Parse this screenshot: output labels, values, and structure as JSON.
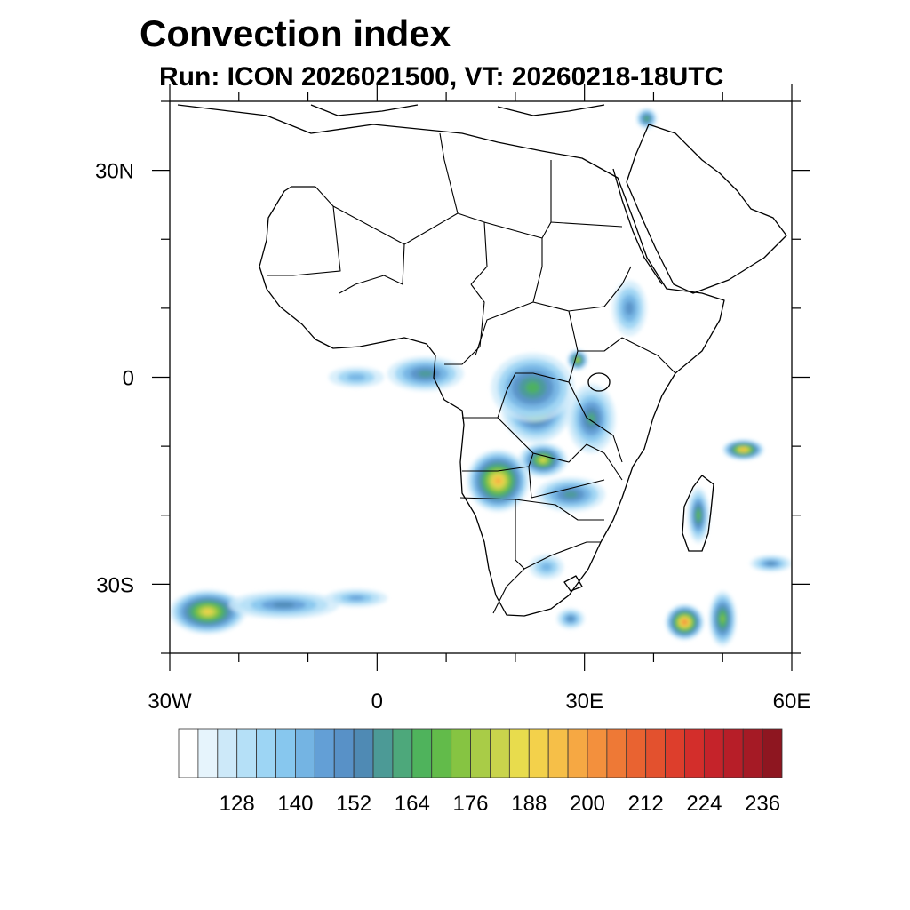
{
  "title": "Convection index",
  "subtitle": "Run: ICON 2026021500,  VT: 20260218-18UTC",
  "map": {
    "projection": "equirectangular",
    "lon_range": [
      -30,
      60
    ],
    "lat_range": [
      -40,
      40
    ],
    "lon_ticks": [
      {
        "lon": -30,
        "label": "30W"
      },
      {
        "lon": 0,
        "label": "0"
      },
      {
        "lon": 30,
        "label": "30E"
      },
      {
        "lon": 60,
        "label": "60E"
      }
    ],
    "lat_ticks": [
      {
        "lat": 30,
        "label": "30N"
      },
      {
        "lat": 0,
        "label": "0"
      },
      {
        "lat": -30,
        "label": "30S"
      }
    ],
    "minor_lon_step": 10,
    "minor_lat_step": 10,
    "coastline_color": "#000000"
  },
  "chart_data": {
    "type": "heatmap",
    "title": "Convection index",
    "subtitle": "Run: ICON 2026021500,  VT: 20260218-18UTC",
    "variable": "Convection index",
    "colorbar": {
      "levels": [
        116,
        120,
        124,
        128,
        132,
        136,
        140,
        144,
        148,
        152,
        156,
        160,
        164,
        168,
        172,
        176,
        180,
        184,
        188,
        192,
        196,
        200,
        204,
        208,
        212,
        216,
        220,
        224,
        228,
        232,
        236,
        240
      ],
      "colors": [
        "#ffffff",
        "#e6f4fc",
        "#cde9f9",
        "#b5e0f7",
        "#9dd5f4",
        "#87c7ee",
        "#74b4e3",
        "#639fd6",
        "#5891c7",
        "#4f8ab4",
        "#4c9a96",
        "#4da87b",
        "#4fb35c",
        "#62bb4a",
        "#86c442",
        "#a9cc47",
        "#c9d44c",
        "#e8dc4d",
        "#f3d14b",
        "#f6bf48",
        "#f6a843",
        "#f3903d",
        "#ee7936",
        "#e96331",
        "#e3512e",
        "#dd3e2c",
        "#d32e2b",
        "#c5232a",
        "#b71e28",
        "#a51a25",
        "#8e1620"
      ],
      "labels": [
        128,
        140,
        152,
        164,
        176,
        188,
        200,
        212,
        224,
        236
      ]
    },
    "convection_cells": [
      {
        "lon": 17.5,
        "lat": -15.0,
        "rx": 4.5,
        "ry": 4.5,
        "peak": 196
      },
      {
        "lon": 24.0,
        "lat": -12.0,
        "rx": 3.5,
        "ry": 2.5,
        "peak": 184
      },
      {
        "lon": 23.0,
        "lat": -4.5,
        "rx": 5.0,
        "ry": 5.0,
        "peak": 176
      },
      {
        "lon": 22.5,
        "lat": -1.5,
        "rx": 6.0,
        "ry": 5.0,
        "peak": 164
      },
      {
        "lon": 31.0,
        "lat": -6.0,
        "rx": 3.5,
        "ry": 5.0,
        "peak": 160
      },
      {
        "lon": 28.0,
        "lat": -17.0,
        "rx": 5.0,
        "ry": 2.5,
        "peak": 156
      },
      {
        "lon": 29.0,
        "lat": 2.5,
        "rx": 1.5,
        "ry": 1.5,
        "peak": 180
      },
      {
        "lon": 36.5,
        "lat": 10.0,
        "rx": 2.5,
        "ry": 4.0,
        "peak": 150
      },
      {
        "lon": 7.0,
        "lat": 0.5,
        "rx": 5.5,
        "ry": 2.5,
        "peak": 156
      },
      {
        "lon": -3.0,
        "lat": 0.0,
        "rx": 4.0,
        "ry": 1.5,
        "peak": 140
      },
      {
        "lon": 44.5,
        "lat": -35.5,
        "rx": 2.8,
        "ry": 2.6,
        "peak": 204
      },
      {
        "lon": 46.5,
        "lat": -20.0,
        "rx": 1.6,
        "ry": 4.0,
        "peak": 168
      },
      {
        "lon": 53.0,
        "lat": -10.5,
        "rx": 3.0,
        "ry": 1.5,
        "peak": 196
      },
      {
        "lon": 50.0,
        "lat": -35.0,
        "rx": 2.0,
        "ry": 4.0,
        "peak": 172
      },
      {
        "lon": 57.0,
        "lat": -27.0,
        "rx": 3.0,
        "ry": 1.2,
        "peak": 152
      },
      {
        "lon": -24.5,
        "lat": -34.0,
        "rx": 5.5,
        "ry": 3.2,
        "peak": 188
      },
      {
        "lon": -13.5,
        "lat": -33.0,
        "rx": 8.0,
        "ry": 2.0,
        "peak": 152
      },
      {
        "lon": -3.0,
        "lat": -32.0,
        "rx": 4.5,
        "ry": 1.3,
        "peak": 146
      },
      {
        "lon": 24.5,
        "lat": -27.5,
        "rx": 2.5,
        "ry": 1.8,
        "peak": 140
      },
      {
        "lon": 28.0,
        "lat": -35.0,
        "rx": 2.0,
        "ry": 1.5,
        "peak": 152
      },
      {
        "lon": 39.0,
        "lat": 37.5,
        "rx": 1.5,
        "ry": 1.5,
        "peak": 164
      }
    ]
  }
}
